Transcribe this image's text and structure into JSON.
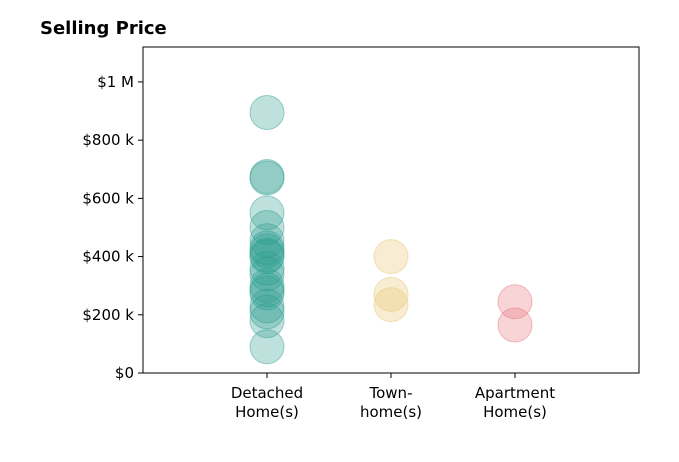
{
  "chart_data": {
    "type": "scatter",
    "title": "Selling Price",
    "xlabel": "",
    "ylabel": "",
    "ylim": [
      0,
      1120000
    ],
    "y_ticks": [
      {
        "value": 0,
        "label": "$0"
      },
      {
        "value": 200000,
        "label": "$200 k"
      },
      {
        "value": 400000,
        "label": "$400 k"
      },
      {
        "value": 600000,
        "label": "$600 k"
      },
      {
        "value": 800000,
        "label": "$800 k"
      },
      {
        "value": 1000000,
        "label": "$1 M"
      }
    ],
    "categories": [
      {
        "lines": [
          "Detached",
          "Home(s)"
        ]
      },
      {
        "lines": [
          "Town-",
          "home(s)"
        ]
      },
      {
        "lines": [
          "Apartment",
          "Home(s)"
        ]
      }
    ],
    "grid": false,
    "series": [
      {
        "color": "#2a9d8f",
        "category_index": 0,
        "values": [
          895000,
          675000,
          670000,
          550000,
          500000,
          455000,
          430000,
          420000,
          405000,
          400000,
          360000,
          340000,
          300000,
          285000,
          275000,
          230000,
          210000,
          180000,
          90000
        ]
      },
      {
        "color": "#e9c46a",
        "category_index": 1,
        "values": [
          400000,
          270000,
          235000
        ]
      },
      {
        "color": "#e76f7a",
        "category_index": 2,
        "values": [
          245000,
          165000
        ]
      }
    ]
  }
}
